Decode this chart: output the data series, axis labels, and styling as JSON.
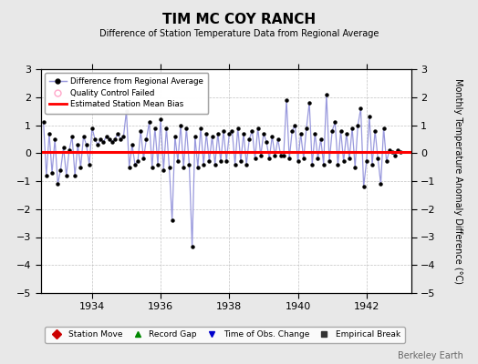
{
  "title": "TIM MC COY RANCH",
  "subtitle": "Difference of Station Temperature Data from Regional Average",
  "ylabel": "Monthly Temperature Anomaly Difference (°C)",
  "watermark": "Berkeley Earth",
  "xlim": [
    1932.5,
    1943.3
  ],
  "ylim": [
    -5,
    3
  ],
  "yticks": [
    -5,
    -4,
    -3,
    -2,
    -1,
    0,
    1,
    2,
    3
  ],
  "xticks": [
    1934,
    1936,
    1938,
    1940,
    1942
  ],
  "bias_value": 0.05,
  "line_color": "#9999dd",
  "marker_color": "#000000",
  "bias_color": "#ff0000",
  "bg_color": "#e8e8e8",
  "plot_bg_color": "#ffffff",
  "data_x": [
    1932.583,
    1932.667,
    1932.75,
    1932.833,
    1932.917,
    1933.0,
    1933.083,
    1933.167,
    1933.25,
    1933.333,
    1933.417,
    1933.5,
    1933.583,
    1933.667,
    1933.75,
    1933.833,
    1933.917,
    1934.0,
    1934.083,
    1934.167,
    1934.25,
    1934.333,
    1934.417,
    1934.5,
    1934.583,
    1934.667,
    1934.75,
    1934.833,
    1934.917,
    1935.0,
    1935.083,
    1935.167,
    1935.25,
    1935.333,
    1935.417,
    1935.5,
    1935.583,
    1935.667,
    1935.75,
    1935.833,
    1935.917,
    1936.0,
    1936.083,
    1936.167,
    1936.25,
    1936.333,
    1936.417,
    1936.5,
    1936.583,
    1936.667,
    1936.75,
    1936.833,
    1936.917,
    1937.0,
    1937.083,
    1937.167,
    1937.25,
    1937.333,
    1937.417,
    1937.5,
    1937.583,
    1937.667,
    1937.75,
    1937.833,
    1937.917,
    1938.0,
    1938.083,
    1938.167,
    1938.25,
    1938.333,
    1938.417,
    1938.5,
    1938.583,
    1938.667,
    1938.75,
    1938.833,
    1938.917,
    1939.0,
    1939.083,
    1939.167,
    1939.25,
    1939.333,
    1939.417,
    1939.5,
    1939.583,
    1939.667,
    1939.75,
    1939.833,
    1939.917,
    1940.0,
    1940.083,
    1940.167,
    1940.25,
    1940.333,
    1940.417,
    1940.5,
    1940.583,
    1940.667,
    1940.75,
    1940.833,
    1940.917,
    1941.0,
    1941.083,
    1941.167,
    1941.25,
    1941.333,
    1941.417,
    1941.5,
    1941.583,
    1941.667,
    1941.75,
    1941.833,
    1941.917,
    1942.0,
    1942.083,
    1942.167,
    1942.25,
    1942.333,
    1942.417,
    1942.5,
    1942.583,
    1942.667,
    1942.75,
    1942.833,
    1942.917,
    1943.0
  ],
  "data_y": [
    1.1,
    -0.8,
    0.7,
    -0.7,
    0.5,
    -1.1,
    -0.6,
    0.2,
    -0.8,
    0.1,
    0.6,
    -0.8,
    0.3,
    -0.5,
    0.6,
    0.3,
    -0.4,
    0.9,
    0.5,
    0.3,
    0.5,
    0.4,
    0.6,
    0.5,
    0.4,
    0.5,
    0.7,
    0.5,
    0.6,
    1.5,
    -0.5,
    0.3,
    -0.4,
    -0.3,
    0.8,
    -0.2,
    0.5,
    1.1,
    -0.5,
    0.9,
    -0.4,
    1.2,
    -0.6,
    0.9,
    -0.5,
    -2.4,
    0.6,
    -0.3,
    1.0,
    -0.5,
    0.9,
    -0.4,
    -3.35,
    0.6,
    -0.5,
    0.9,
    -0.4,
    0.7,
    -0.3,
    0.6,
    -0.4,
    0.7,
    -0.3,
    0.8,
    -0.3,
    0.7,
    0.8,
    -0.4,
    0.9,
    -0.3,
    0.7,
    -0.4,
    0.5,
    0.8,
    -0.2,
    0.9,
    -0.1,
    0.7,
    0.4,
    -0.2,
    0.6,
    -0.1,
    0.5,
    -0.1,
    -0.1,
    1.9,
    -0.2,
    0.8,
    1.0,
    -0.3,
    0.7,
    -0.2,
    0.9,
    1.8,
    -0.4,
    0.7,
    -0.2,
    0.5,
    -0.4,
    2.1,
    -0.3,
    0.8,
    1.1,
    -0.4,
    0.8,
    -0.3,
    0.7,
    -0.2,
    0.9,
    -0.5,
    1.0,
    1.6,
    -1.2,
    -0.3,
    1.3,
    -0.4,
    0.8,
    -0.2,
    -1.1,
    0.9,
    -0.3,
    0.1,
    0.05,
    -0.1,
    0.1,
    0.05
  ]
}
